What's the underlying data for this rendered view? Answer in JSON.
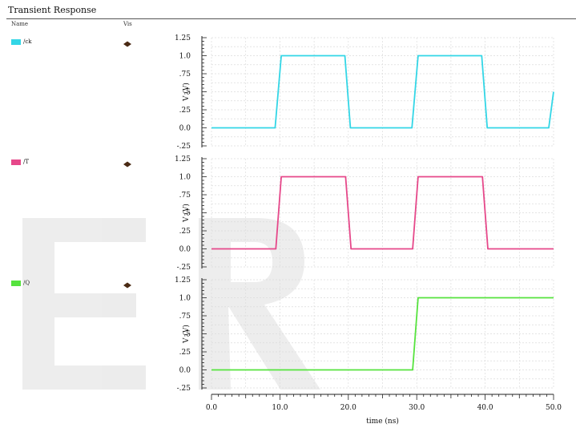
{
  "title": "Transient Response",
  "columns": {
    "name": "Name",
    "vis": "Vis"
  },
  "chart_data": {
    "type": "line",
    "xlabel": "time (ns)",
    "xlim": [
      0,
      50
    ],
    "xticks": [
      "0.0",
      "10.0",
      "20.0",
      "30.0",
      "40.0",
      "50.0"
    ],
    "ylim": [
      -0.25,
      1.25
    ],
    "yticks": [
      "-.25",
      "0.0",
      ".25",
      ".5",
      ".75",
      "1.0",
      "1.25"
    ],
    "grid": true,
    "series": [
      {
        "name": "/ck",
        "color": "#33d6e6",
        "ylabel": "V (V)",
        "x": [
          0,
          9.3,
          10.2,
          19.5,
          20.3,
          29.3,
          30.2,
          39.5,
          40.3,
          49.3,
          50
        ],
        "y": [
          0,
          0,
          1,
          1,
          0,
          0,
          1,
          1,
          0,
          0,
          0.5
        ]
      },
      {
        "name": "/T",
        "color": "#e6488a",
        "ylabel": "V (V)",
        "x": [
          0,
          9.4,
          10.2,
          19.6,
          20.4,
          29.4,
          30.2,
          39.6,
          40.4,
          50
        ],
        "y": [
          0,
          0,
          1,
          1,
          0,
          0,
          1,
          1,
          0,
          0
        ]
      },
      {
        "name": "/Q",
        "color": "#56e33e",
        "ylabel": "V (V)",
        "x": [
          0,
          29.4,
          30.2,
          50
        ],
        "y": [
          0,
          0,
          1,
          1
        ]
      }
    ]
  }
}
